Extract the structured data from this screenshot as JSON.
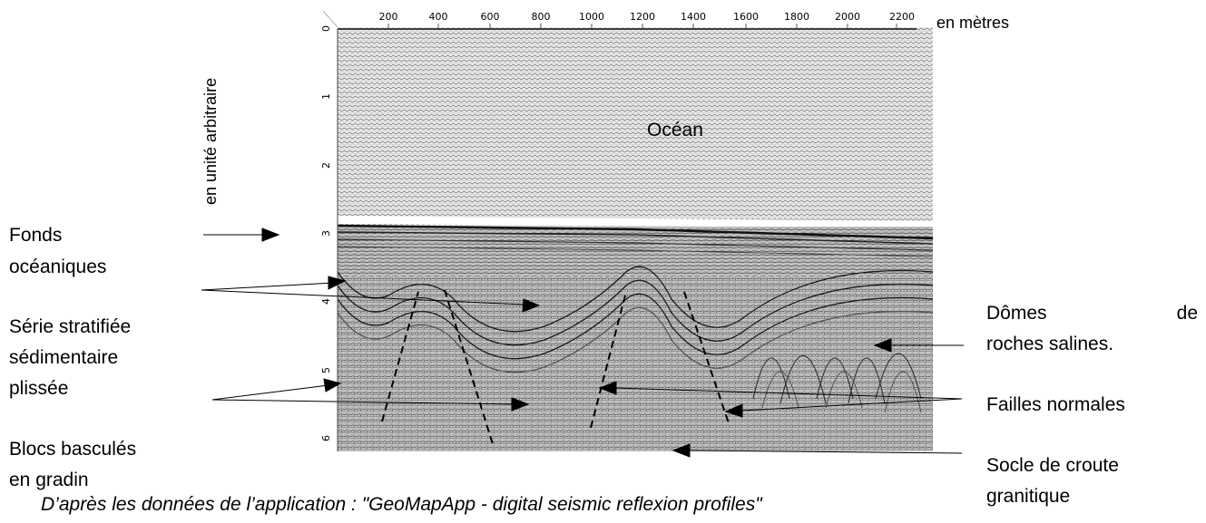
{
  "axes": {
    "x_unit": "en mètres",
    "y_unit": "en unité arbitraire",
    "x_ticks": [
      "200",
      "400",
      "600",
      "800",
      "1000",
      "1200",
      "1400",
      "1600",
      "1800",
      "2000",
      "2200"
    ],
    "y_ticks": [
      "0",
      "1",
      "2",
      "3",
      "4",
      "5",
      "6"
    ]
  },
  "labels": {
    "ocean": "Océan",
    "fonds_line1": "Fonds",
    "fonds_line2": "océaniques",
    "serie_line1": "Série stratifiée",
    "serie_line2": "sédimentaire",
    "serie_line3": "plissée",
    "blocs_line1": "Blocs basculés",
    "blocs_line2": "en gradin",
    "domes_word1": "Dômes",
    "domes_word2": "de",
    "domes_line2": "roches salines.",
    "failles": "Failles normales",
    "socle_line1": "Socle de croute",
    "socle_line2": "granitique"
  },
  "caption": "D’après les données de l’application : \"GeoMapApp - digital seismic reflexion profiles\""
}
